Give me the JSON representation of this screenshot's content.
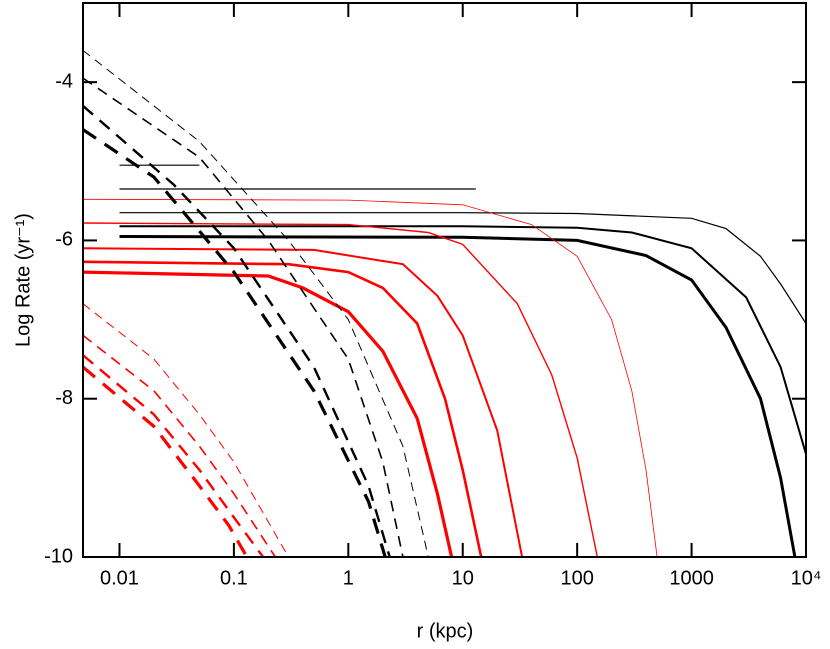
{
  "chart_data": {
    "type": "line",
    "xlabel": "r (kpc)",
    "ylabel": "Log Rate (yr⁻¹)",
    "xscale": "log",
    "xlim": [
      0.0048,
      10000
    ],
    "ylim": [
      -10,
      -3
    ],
    "xticks": [
      0.01,
      0.1,
      1,
      10,
      100,
      1000,
      {
        "value": 10000,
        "label": "10⁴"
      }
    ],
    "yticks": [
      -4,
      -6,
      -8,
      -10
    ],
    "series": [
      {
        "color": "#000000",
        "width": 1.2,
        "dash": "solid",
        "x": [
          0.01,
          10,
          100,
          1000,
          2000,
          4000,
          6000,
          10000
        ],
        "values": [
          -5.65,
          -5.65,
          -5.66,
          -5.72,
          -5.85,
          -6.2,
          -6.55,
          -7.05
        ]
      },
      {
        "color": "#000000",
        "width": 2,
        "dash": "solid",
        "x": [
          0.01,
          10,
          100,
          300,
          1000,
          3000,
          6000,
          10000
        ],
        "values": [
          -5.82,
          -5.82,
          -5.84,
          -5.9,
          -6.1,
          -6.72,
          -7.6,
          -8.7
        ]
      },
      {
        "color": "#000000",
        "width": 3,
        "dash": "solid",
        "x": [
          0.01,
          10,
          100,
          400,
          1000,
          2000,
          4000,
          6000,
          8000
        ],
        "values": [
          -5.95,
          -5.96,
          -6.0,
          -6.19,
          -6.5,
          -7.1,
          -8.0,
          -9.0,
          -10
        ]
      },
      {
        "color": "#000000",
        "width": 1.2,
        "dash": "solid",
        "x": [
          0.01,
          0.05
        ],
        "values": [
          -5.05,
          -5.05
        ]
      },
      {
        "color": "#000000",
        "width": 1.2,
        "dash": "solid",
        "x": [
          0.01,
          13
        ],
        "values": [
          -5.35,
          -5.35
        ]
      },
      {
        "color": "#ff0000",
        "width": 0.8,
        "dash": "solid",
        "x": [
          0.0048,
          1,
          10,
          40,
          100,
          200,
          300,
          400,
          500
        ],
        "values": [
          -5.48,
          -5.49,
          -5.55,
          -5.8,
          -6.2,
          -7.0,
          -7.9,
          -8.9,
          -10
        ]
      },
      {
        "color": "#ff0000",
        "width": 1.4,
        "dash": "solid",
        "x": [
          0.0048,
          1,
          5,
          10,
          30,
          60,
          100,
          150
        ],
        "values": [
          -5.78,
          -5.8,
          -5.9,
          -6.05,
          -6.8,
          -7.7,
          -8.75,
          -10
        ]
      },
      {
        "color": "#ff0000",
        "width": 2,
        "dash": "solid",
        "x": [
          0.0048,
          0.5,
          3,
          6,
          10,
          20,
          33
        ],
        "values": [
          -6.1,
          -6.12,
          -6.3,
          -6.7,
          -7.2,
          -8.4,
          -10
        ]
      },
      {
        "color": "#ff0000",
        "width": 2.6,
        "dash": "solid",
        "x": [
          0.0048,
          0.3,
          1,
          2,
          4,
          7,
          10,
          14.5
        ],
        "values": [
          -6.27,
          -6.3,
          -6.4,
          -6.6,
          -7.05,
          -8.0,
          -8.9,
          -10
        ]
      },
      {
        "color": "#ff0000",
        "width": 3.2,
        "dash": "solid",
        "x": [
          0.0048,
          0.2,
          0.4,
          1,
          2,
          4,
          6,
          8
        ],
        "values": [
          -6.4,
          -6.45,
          -6.6,
          -6.9,
          -7.4,
          -8.25,
          -9.2,
          -10
        ]
      },
      {
        "color": "#000000",
        "width": 1,
        "dash": "dashed",
        "x": [
          0.0048,
          0.05,
          0.3,
          1,
          3,
          5
        ],
        "values": [
          -3.6,
          -4.75,
          -6.0,
          -7.0,
          -8.6,
          -10
        ]
      },
      {
        "color": "#000000",
        "width": 1.6,
        "dash": "dashed",
        "x": [
          0.0048,
          0.05,
          0.2,
          1,
          2,
          3
        ],
        "values": [
          -3.95,
          -4.95,
          -6.0,
          -7.5,
          -8.8,
          -10
        ]
      },
      {
        "color": "#000000",
        "width": 2.4,
        "dash": "dashed",
        "x": [
          0.0048,
          0.03,
          0.1,
          0.5,
          1.5,
          2.3
        ],
        "values": [
          -4.3,
          -5.3,
          -6.1,
          -7.6,
          -9.1,
          -10
        ]
      },
      {
        "color": "#000000",
        "width": 3.2,
        "dash": "dashed",
        "x": [
          0.0048,
          0.02,
          0.1,
          0.5,
          1.5,
          2.1
        ],
        "values": [
          -4.6,
          -5.2,
          -6.4,
          -7.9,
          -9.3,
          -10
        ]
      },
      {
        "color": "#ff0000",
        "width": 1,
        "dash": "dashed",
        "x": [
          0.0048,
          0.02,
          0.05,
          0.1,
          0.3
        ],
        "values": [
          -6.8,
          -7.5,
          -8.2,
          -8.8,
          -10
        ]
      },
      {
        "color": "#ff0000",
        "width": 1.6,
        "dash": "dashed",
        "x": [
          0.0048,
          0.02,
          0.05,
          0.1,
          0.23
        ],
        "values": [
          -7.2,
          -7.9,
          -8.6,
          -9.2,
          -10
        ]
      },
      {
        "color": "#ff0000",
        "width": 2.4,
        "dash": "dashed",
        "x": [
          0.0048,
          0.02,
          0.05,
          0.1,
          0.18
        ],
        "values": [
          -7.45,
          -8.2,
          -8.9,
          -9.5,
          -10
        ]
      },
      {
        "color": "#ff0000",
        "width": 3.2,
        "dash": "dashed",
        "x": [
          0.0048,
          0.02,
          0.05,
          0.09,
          0.13
        ],
        "values": [
          -7.6,
          -8.35,
          -9.1,
          -9.6,
          -10
        ]
      }
    ]
  }
}
